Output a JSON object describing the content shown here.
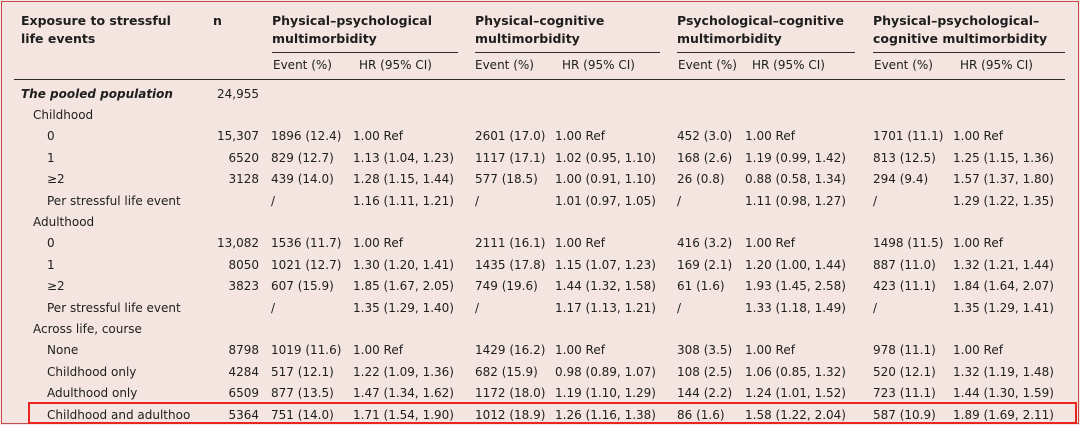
{
  "header": {
    "exposure": [
      "Exposure to stressful",
      "life events"
    ],
    "n": "n"
  },
  "groups": [
    {
      "title": [
        "Physical–psychological",
        "multimorbidity"
      ]
    },
    {
      "title": [
        "Physical–cognitive",
        "multimorbidity"
      ]
    },
    {
      "title": [
        "Psychological–cognitive",
        "multimorbidity"
      ]
    },
    {
      "title": [
        "Physical–psychological–",
        "cognitive multimorbidity"
      ]
    }
  ],
  "subheaders": {
    "event": "Event (%)",
    "hr": "HR (95% CI)"
  },
  "rows": [
    {
      "label": "The pooled population",
      "level": 0,
      "n": "24,955",
      "cells": [
        "",
        "",
        "",
        "",
        "",
        "",
        "",
        ""
      ]
    },
    {
      "label": "Childhood",
      "level": 1,
      "n": "",
      "cells": [
        "",
        "",
        "",
        "",
        "",
        "",
        "",
        ""
      ]
    },
    {
      "label": "0",
      "level": 2,
      "n": "15,307",
      "cells": [
        "1896 (12.4)",
        "1.00 Ref",
        "2601 (17.0)",
        "1.00 Ref",
        "452 (3.0)",
        "1.00 Ref",
        "1701 (11.1)",
        "1.00 Ref"
      ]
    },
    {
      "label": "1",
      "level": 2,
      "n": "6520",
      "cells": [
        "829 (12.7)",
        "1.13 (1.04, 1.23)",
        "1117 (17.1)",
        "1.02 (0.95, 1.10)",
        "168 (2.6)",
        "1.19 (0.99, 1.42)",
        "813 (12.5)",
        "1.25 (1.15, 1.36)"
      ]
    },
    {
      "label": "≥2",
      "level": 2,
      "n": "3128",
      "cells": [
        "439 (14.0)",
        "1.28 (1.15, 1.44)",
        "577 (18.5)",
        "1.00 (0.91, 1.10)",
        "26 (0.8)",
        "0.88 (0.58, 1.34)",
        "294 (9.4)",
        "1.57 (1.37, 1.80)"
      ]
    },
    {
      "label": "Per stressful life event",
      "level": 2,
      "n": "",
      "cells": [
        "/",
        "1.16 (1.11, 1.21)",
        "/",
        "1.01 (0.97, 1.05)",
        "/",
        "1.11 (0.98, 1.27)",
        "/",
        "1.29 (1.22, 1.35)"
      ]
    },
    {
      "label": "Adulthood",
      "level": 1,
      "n": "",
      "cells": [
        "",
        "",
        "",
        "",
        "",
        "",
        "",
        ""
      ]
    },
    {
      "label": "0",
      "level": 2,
      "n": "13,082",
      "cells": [
        "1536 (11.7)",
        "1.00 Ref",
        "2111 (16.1)",
        "1.00 Ref",
        "416 (3.2)",
        "1.00 Ref",
        "1498 (11.5)",
        "1.00 Ref"
      ]
    },
    {
      "label": "1",
      "level": 2,
      "n": "8050",
      "cells": [
        "1021 (12.7)",
        "1.30 (1.20, 1.41)",
        "1435 (17.8)",
        "1.15 (1.07, 1.23)",
        "169 (2.1)",
        "1.20 (1.00, 1.44)",
        "887 (11.0)",
        "1.32 (1.21, 1.44)"
      ]
    },
    {
      "label": "≥2",
      "level": 2,
      "n": "3823",
      "cells": [
        "607 (15.9)",
        "1.85 (1.67, 2.05)",
        "749 (19.6)",
        "1.44 (1.32, 1.58)",
        "61 (1.6)",
        "1.93 (1.45, 2.58)",
        "423 (11.1)",
        "1.84 (1.64, 2.07)"
      ]
    },
    {
      "label": "Per stressful life event",
      "level": 2,
      "n": "",
      "cells": [
        "/",
        "1.35 (1.29, 1.40)",
        "/",
        "1.17 (1.13, 1.21)",
        "/",
        "1.33 (1.18, 1.49)",
        "/",
        "1.35 (1.29, 1.41)"
      ]
    },
    {
      "label": "Across life, course",
      "level": 1,
      "n": "",
      "cells": [
        "",
        "",
        "",
        "",
        "",
        "",
        "",
        ""
      ]
    },
    {
      "label": "None",
      "level": 2,
      "n": "8798",
      "cells": [
        "1019 (11.6)",
        "1.00 Ref",
        "1429 (16.2)",
        "1.00 Ref",
        "308 (3.5)",
        "1.00 Ref",
        "978 (11.1)",
        "1.00 Ref"
      ]
    },
    {
      "label": "Childhood only",
      "level": 2,
      "n": "4284",
      "cells": [
        "517 (12.1)",
        "1.22 (1.09, 1.36)",
        "682 (15.9)",
        "0.98 (0.89, 1.07)",
        "108 (2.5)",
        "1.06 (0.85, 1.32)",
        "520 (12.1)",
        "1.32 (1.19, 1.48)"
      ]
    },
    {
      "label": "Adulthood only",
      "level": 2,
      "n": "6509",
      "cells": [
        "877 (13.5)",
        "1.47 (1.34, 1.62)",
        "1172 (18.0)",
        "1.19 (1.10, 1.29)",
        "144 (2.2)",
        "1.24 (1.01, 1.52)",
        "723 (11.1)",
        "1.44 (1.30, 1.59)"
      ]
    },
    {
      "label": "Childhood and adulthood",
      "level": 2,
      "n": "5364",
      "cells": [
        "751 (14.0)",
        "1.71 (1.54, 1.90)",
        "1012 (18.9)",
        "1.26 (1.16, 1.38)",
        "86 (1.6)",
        "1.58 (1.22, 2.04)",
        "587 (10.9)",
        "1.89 (1.69, 2.11)"
      ]
    }
  ]
}
